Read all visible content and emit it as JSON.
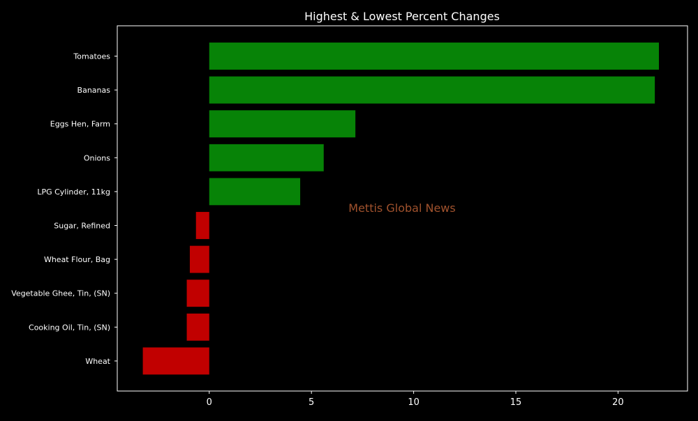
{
  "chart_data": {
    "type": "bar",
    "orientation": "horizontal",
    "title": "Highest & Lowest Percent Changes",
    "xlabel": "",
    "ylabel": "",
    "xlim": [
      -4.5,
      23.4
    ],
    "xticks": [
      0,
      5,
      10,
      15,
      20
    ],
    "grid": false,
    "watermark": "Mettis Global News",
    "categories": [
      "Tomatoes",
      "Bananas",
      "Eggs Hen, Farm",
      "Onions",
      "LPG Cylinder, 11kg",
      "Sugar, Refined",
      "Wheat Flour, Bag",
      "Vegetable Ghee, Tin, (SN)",
      "Cooking Oil, Tin, (SN)",
      "Wheat"
    ],
    "values": [
      22.0,
      21.8,
      7.15,
      5.6,
      4.45,
      -0.65,
      -0.95,
      -1.1,
      -1.1,
      -3.25
    ],
    "colors": {
      "positive": "#078307",
      "negative": "#c10000",
      "background": "#000000",
      "text": "#ffffff",
      "axis": "#ffffff",
      "watermark": "#a0522d"
    }
  }
}
